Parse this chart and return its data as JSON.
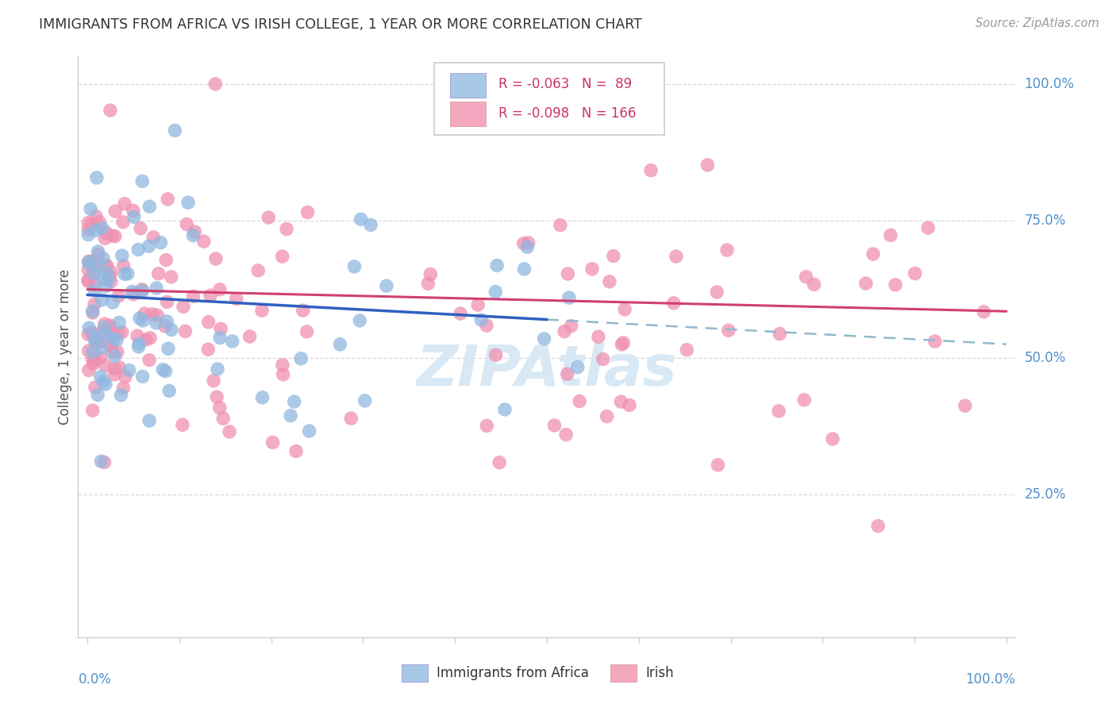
{
  "title": "IMMIGRANTS FROM AFRICA VS IRISH COLLEGE, 1 YEAR OR MORE CORRELATION CHART",
  "source_text": "Source: ZipAtlas.com",
  "ylabel": "College, 1 year or more",
  "legend1_color": "#a8c8e8",
  "legend2_color": "#f4a8c0",
  "scatter_color_blue": "#90b8e0",
  "scatter_color_pink": "#f090b0",
  "line_color_blue": "#3060c0",
  "line_color_pink": "#d04070",
  "line_color_dashed": "#90b8cc",
  "right_tick_color": "#5090cc",
  "bottom_tick_color": "#5090cc",
  "watermark_color": "#d8e8f4",
  "grid_color": "#d8d8d8",
  "spine_color": "#cccccc",
  "title_color": "#333333",
  "source_color": "#999999",
  "ylabel_color": "#555555",
  "legend_text_color": "#cc3366"
}
